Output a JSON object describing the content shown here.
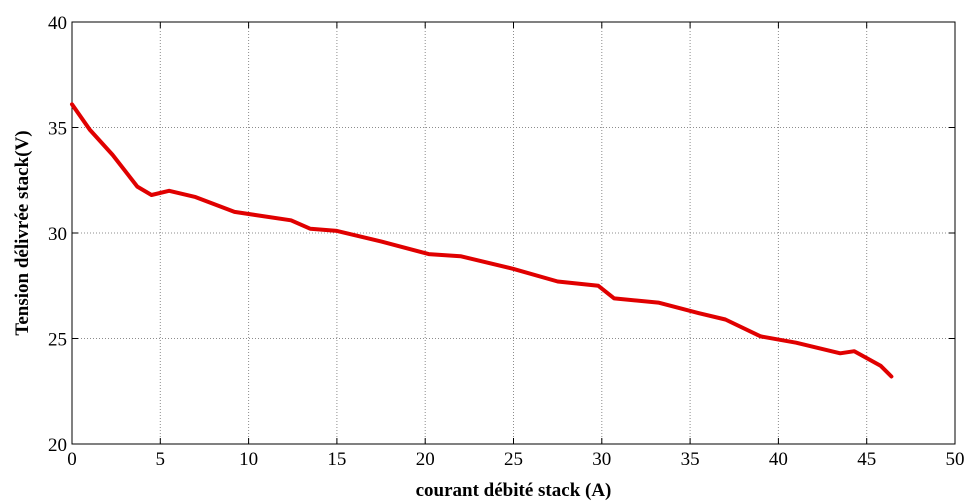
{
  "chart_data": {
    "type": "line",
    "title": "",
    "xlabel": "courant débité stack (A)",
    "ylabel": "Tension délivrée stack(V)",
    "xlim": [
      0,
      50
    ],
    "ylim": [
      20,
      40
    ],
    "xticks": [
      0,
      5,
      10,
      15,
      20,
      25,
      30,
      35,
      40,
      45,
      50
    ],
    "yticks": [
      20,
      25,
      30,
      35,
      40
    ],
    "grid": true,
    "series": [
      {
        "color": "#e00000",
        "x": [
          0,
          1,
          2.3,
          3.7,
          4.5,
          5.5,
          7,
          9.2,
          12.4,
          13.5,
          15,
          17.5,
          20.2,
          22,
          25,
          27.5,
          29.8,
          30.7,
          33.2,
          35.5,
          37,
          39,
          41,
          43.5,
          44.3,
          45.8,
          46.4
        ],
        "y": [
          36.1,
          34.9,
          33.7,
          32.2,
          31.8,
          32.0,
          31.7,
          31.0,
          30.6,
          30.2,
          30.1,
          29.6,
          29.0,
          28.9,
          28.3,
          27.7,
          27.5,
          26.9,
          26.7,
          26.2,
          25.9,
          25.1,
          24.8,
          24.3,
          24.4,
          23.7,
          23.2
        ]
      }
    ]
  }
}
